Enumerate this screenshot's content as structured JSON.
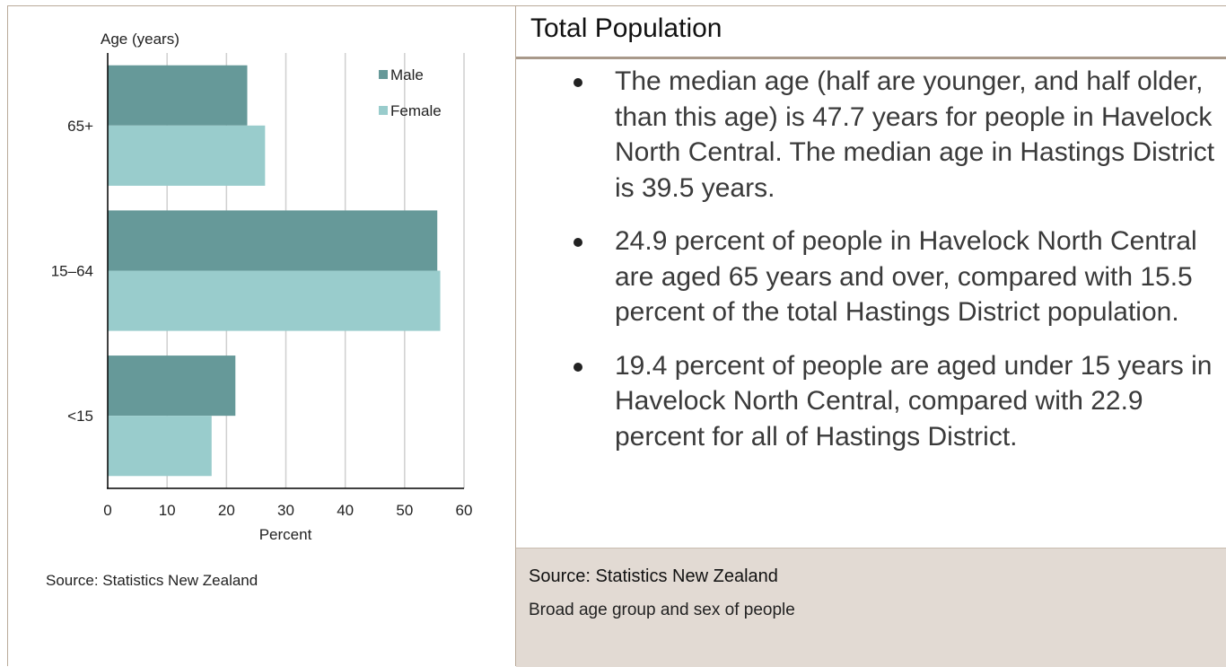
{
  "chart_data": {
    "type": "bar",
    "orientation": "horizontal",
    "categories": [
      "65+",
      "15–64",
      "<15"
    ],
    "series": [
      {
        "name": "Male",
        "values": [
          23.5,
          55.5,
          21.5
        ],
        "color": "#669999"
      },
      {
        "name": "Female",
        "values": [
          26.5,
          56.0,
          17.5
        ],
        "color": "#99cccc"
      }
    ],
    "xlabel": "Percent",
    "ylabel": "Age (years)",
    "xlim": [
      0,
      60
    ],
    "xticks": [
      "0",
      "10",
      "20",
      "30",
      "40",
      "50",
      "60"
    ],
    "grid": true,
    "legend": "top-right"
  },
  "left": {
    "source": "Source: Statistics New Zealand"
  },
  "right": {
    "title": "Total Population",
    "bullets": [
      "The median age (half are younger, and half older, than this age) is 47.7 years for people in Havelock North Central. The median age in Hastings District is 39.5 years.",
      "24.9 percent of people in Havelock North Central are aged 65 years and over, compared with 15.5 percent of the total Hastings District population.",
      "19.4 percent of people are aged under 15 years in Havelock North Central, compared with 22.9 percent for all of Hastings District."
    ],
    "footer_source": "Source: Statistics New Zealand",
    "footer_caption": "Broad age group and sex of people"
  }
}
